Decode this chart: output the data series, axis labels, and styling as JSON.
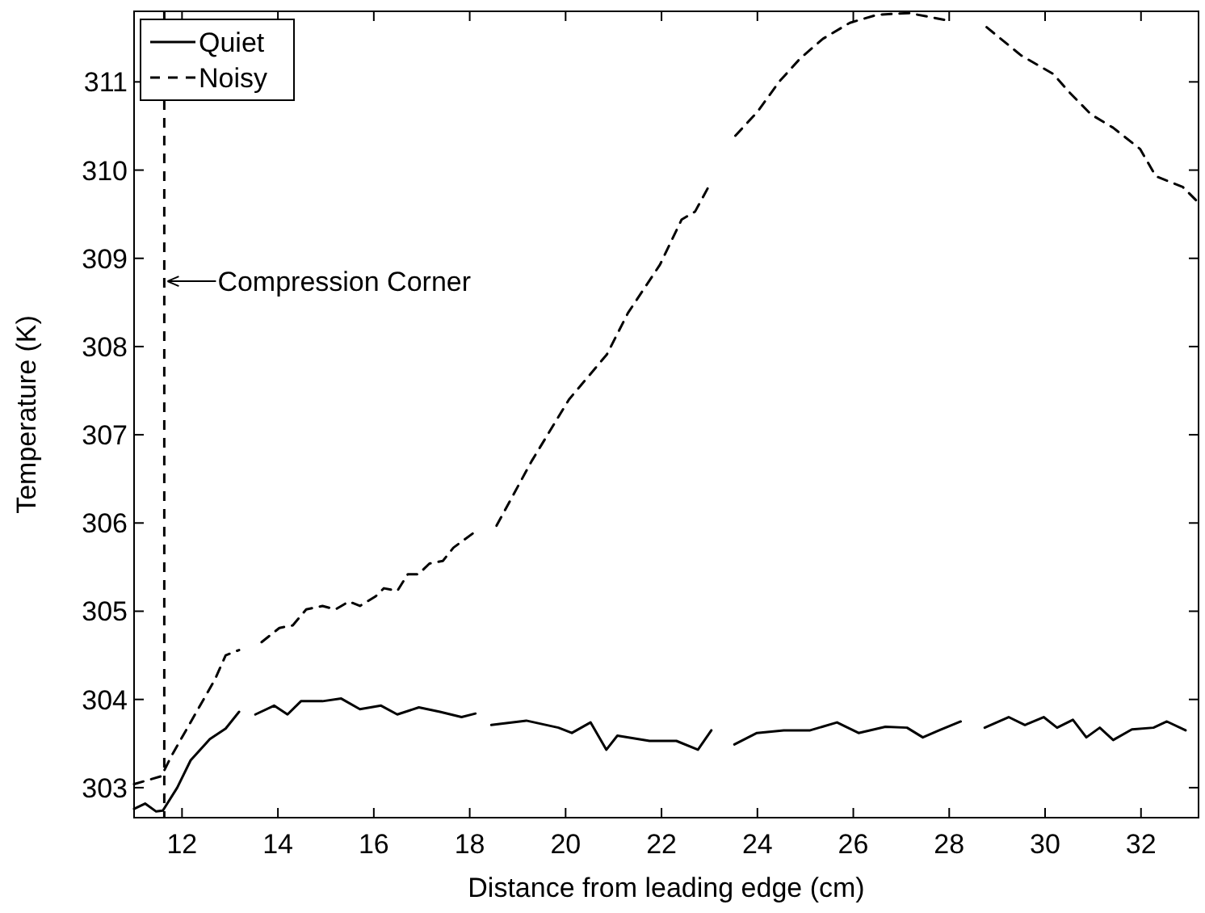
{
  "chart_data": {
    "type": "line",
    "xlabel": "Distance from leading edge (cm)",
    "ylabel": "Temperature (K)",
    "xlim": [
      11,
      33.2
    ],
    "xticks": [
      12,
      14,
      16,
      18,
      20,
      22,
      24,
      26,
      28,
      30,
      32
    ],
    "ylim": [
      302.66,
      311.8
    ],
    "yticks": [
      303,
      304,
      305,
      306,
      307,
      308,
      309,
      310,
      311
    ],
    "grid": false,
    "legend": "top left",
    "marker": "none",
    "ref_lines": [
      {
        "axis": "x",
        "value": 11.63,
        "color": "#000000",
        "line_style": "dashed"
      }
    ],
    "annotations": [
      {
        "text": "Compression Corner",
        "x": 11.63,
        "y": 308.74
      }
    ],
    "series": [
      {
        "name": "Quiet",
        "color": "#000000",
        "line_style": "solid",
        "x": [
          11.0,
          11.23,
          11.46,
          11.6,
          11.9,
          12.18,
          12.58,
          12.91,
          13.19,
          13.35,
          13.53,
          13.92,
          14.2,
          14.48,
          14.93,
          15.32,
          15.71,
          16.15,
          16.49,
          16.94,
          17.38,
          17.83,
          18.12,
          18.3,
          18.45,
          19.18,
          19.85,
          20.13,
          20.52,
          20.85,
          21.08,
          21.75,
          22.31,
          22.76,
          23.04,
          23.3,
          23.52,
          23.99,
          24.55,
          25.1,
          25.66,
          26.11,
          26.67,
          27.12,
          27.45,
          27.79,
          28.24,
          28.5,
          28.74,
          29.24,
          29.58,
          29.97,
          30.25,
          30.58,
          30.86,
          31.14,
          31.42,
          31.81,
          32.26,
          32.54,
          32.93
        ],
        "values": [
          302.76,
          302.82,
          302.73,
          302.74,
          303.0,
          303.31,
          303.55,
          303.67,
          303.86,
          null,
          303.83,
          303.93,
          303.83,
          303.98,
          303.98,
          304.01,
          303.89,
          303.93,
          303.83,
          303.91,
          303.86,
          303.8,
          303.84,
          null,
          303.71,
          303.76,
          303.68,
          303.62,
          303.74,
          303.43,
          303.59,
          303.53,
          303.53,
          303.43,
          303.65,
          null,
          303.49,
          303.62,
          303.65,
          303.65,
          303.74,
          303.62,
          303.69,
          303.68,
          303.57,
          303.65,
          303.75,
          null,
          303.68,
          303.8,
          303.71,
          303.8,
          303.68,
          303.77,
          303.57,
          303.68,
          303.54,
          303.66,
          303.68,
          303.75,
          303.65
        ]
      },
      {
        "name": "Noisy",
        "color": "#000000",
        "line_style": "dashed",
        "x": [
          11.0,
          11.57,
          11.77,
          12.24,
          12.69,
          12.91,
          13.19,
          13.4,
          13.66,
          14.03,
          14.31,
          14.59,
          14.93,
          15.2,
          15.48,
          15.71,
          16.04,
          16.21,
          16.49,
          16.71,
          16.93,
          17.16,
          17.44,
          17.66,
          18.11,
          18.3,
          18.56,
          19.29,
          20.07,
          20.86,
          21.3,
          21.97,
          22.42,
          22.7,
          23.04,
          23.3,
          23.54,
          24.0,
          24.45,
          24.9,
          25.37,
          25.93,
          26.49,
          27.16,
          27.94,
          28.3,
          28.78,
          29.5,
          30.17,
          30.51,
          30.96,
          31.42,
          31.98,
          32.31,
          32.87,
          33.2
        ],
        "values": [
          303.04,
          303.13,
          303.35,
          303.8,
          304.23,
          304.5,
          304.56,
          null,
          304.65,
          304.81,
          304.84,
          305.02,
          305.06,
          305.02,
          305.11,
          305.06,
          305.17,
          305.26,
          305.23,
          305.42,
          305.42,
          305.54,
          305.57,
          305.72,
          305.9,
          null,
          305.97,
          306.7,
          307.4,
          307.91,
          308.38,
          308.93,
          309.44,
          309.53,
          309.87,
          null,
          310.39,
          310.66,
          311.0,
          311.27,
          311.49,
          311.67,
          311.76,
          311.78,
          311.7,
          null,
          311.62,
          311.3,
          311.09,
          310.88,
          310.63,
          310.48,
          310.24,
          309.93,
          309.81,
          309.63
        ]
      }
    ]
  }
}
